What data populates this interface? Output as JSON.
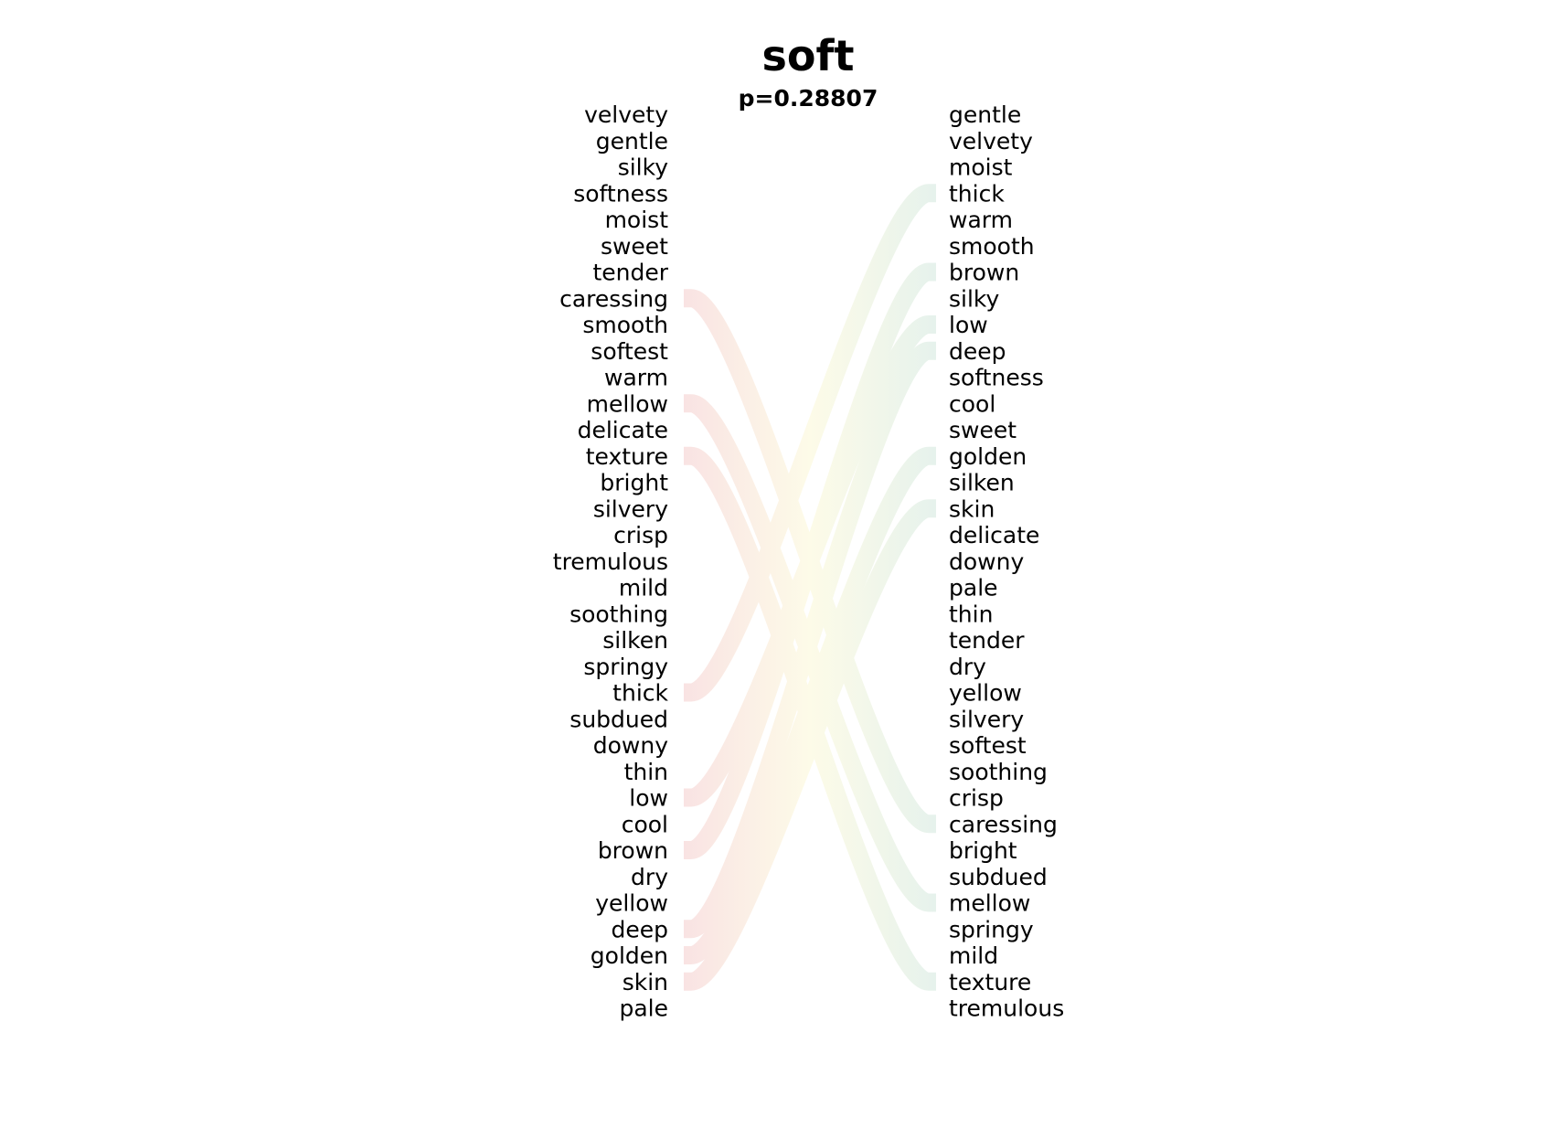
{
  "chart_data": {
    "type": "slope",
    "title": "soft",
    "subtitle": "p=0.28807",
    "left_words": [
      "velvety",
      "gentle",
      "silky",
      "softness",
      "moist",
      "sweet",
      "tender",
      "caressing",
      "smooth",
      "softest",
      "warm",
      "mellow",
      "delicate",
      "texture",
      "bright",
      "silvery",
      "crisp",
      "tremulous",
      "mild",
      "soothing",
      "silken",
      "springy",
      "thick",
      "subdued",
      "downy",
      "thin",
      "low",
      "cool",
      "brown",
      "dry",
      "yellow",
      "deep",
      "golden",
      "skin",
      "pale"
    ],
    "right_words": [
      "gentle",
      "velvety",
      "moist",
      "thick",
      "warm",
      "smooth",
      "brown",
      "silky",
      "low",
      "deep",
      "softness",
      "cool",
      "sweet",
      "golden",
      "silken",
      "skin",
      "delicate",
      "downy",
      "pale",
      "thin",
      "tender",
      "dry",
      "yellow",
      "silvery",
      "softest",
      "soothing",
      "crisp",
      "caressing",
      "bright",
      "subdued",
      "mellow",
      "springy",
      "mild",
      "texture",
      "tremulous"
    ],
    "highlighted_links": [
      {
        "word": "caressing",
        "left_rank": 7,
        "right_rank": 27
      },
      {
        "word": "mellow",
        "left_rank": 11,
        "right_rank": 30
      },
      {
        "word": "texture",
        "left_rank": 13,
        "right_rank": 33
      },
      {
        "word": "thick",
        "left_rank": 22,
        "right_rank": 3
      },
      {
        "word": "low",
        "left_rank": 26,
        "right_rank": 8
      },
      {
        "word": "brown",
        "left_rank": 28,
        "right_rank": 6
      },
      {
        "word": "deep",
        "left_rank": 31,
        "right_rank": 9
      },
      {
        "word": "golden",
        "left_rank": 32,
        "right_rank": 13
      },
      {
        "word": "skin",
        "left_rank": 33,
        "right_rank": 15
      }
    ],
    "colors": {
      "left": "#f9e3e3",
      "middle": "#fdfbe8",
      "right": "#e6f2ec",
      "text": "#000000"
    }
  }
}
